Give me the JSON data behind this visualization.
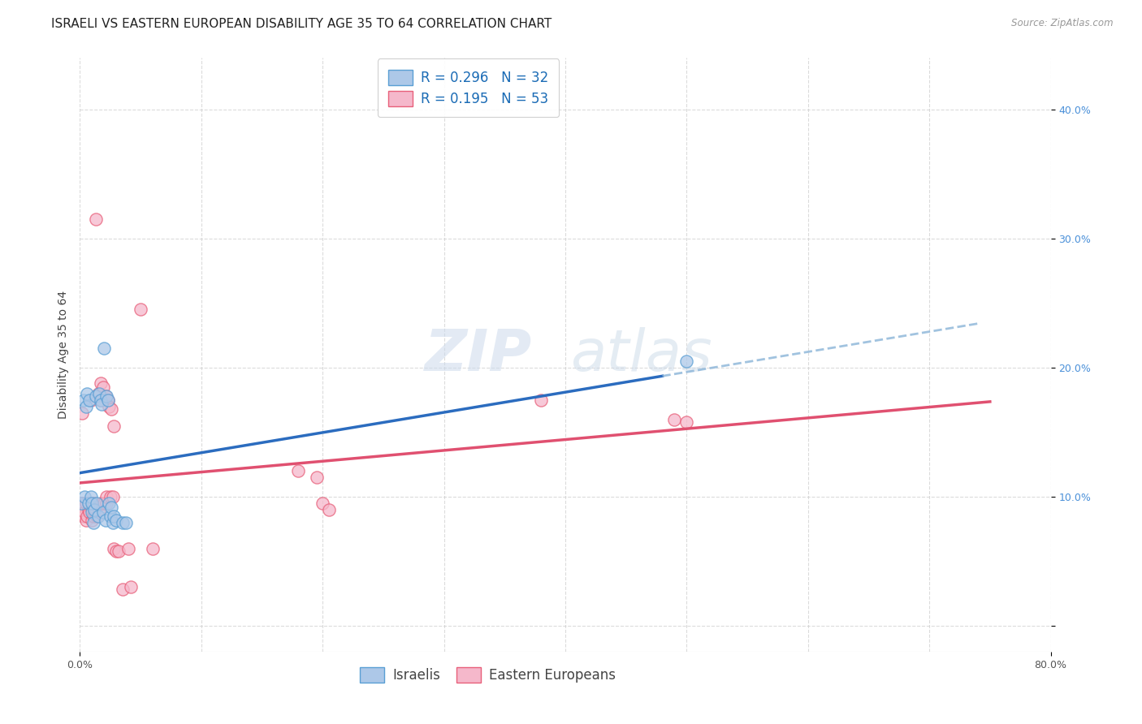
{
  "title": "ISRAELI VS EASTERN EUROPEAN DISABILITY AGE 35 TO 64 CORRELATION CHART",
  "source": "Source: ZipAtlas.com",
  "xlabel": "",
  "ylabel": "Disability Age 35 to 64",
  "xlim": [
    0,
    0.8
  ],
  "ylim": [
    -0.02,
    0.44
  ],
  "xticks": [
    0.0,
    0.8
  ],
  "xticklabels": [
    "0.0%",
    "80.0%"
  ],
  "yticks": [
    0.0,
    0.1,
    0.2,
    0.3,
    0.4
  ],
  "yticklabels": [
    "",
    "10.0%",
    "20.0%",
    "30.0%",
    "40.0%"
  ],
  "grid_yticks": [
    0.0,
    0.1,
    0.2,
    0.3,
    0.4
  ],
  "grid_xticks": [
    0.0,
    0.1,
    0.2,
    0.3,
    0.4,
    0.5,
    0.6,
    0.7,
    0.8
  ],
  "israeli_R": 0.296,
  "israeli_N": 32,
  "eastern_R": 0.195,
  "eastern_N": 53,
  "israeli_color": "#adc8e8",
  "eastern_color": "#f5b8cb",
  "israeli_edge_color": "#5a9fd4",
  "eastern_edge_color": "#e8607a",
  "israeli_line_color": "#2b6cbf",
  "eastern_line_color": "#e05070",
  "israeli_dash_color": "#8ab4d8",
  "israeli_scatter_x": [
    0.001,
    0.003,
    0.004,
    0.005,
    0.006,
    0.007,
    0.008,
    0.009,
    0.01,
    0.01,
    0.011,
    0.012,
    0.013,
    0.014,
    0.015,
    0.016,
    0.017,
    0.018,
    0.019,
    0.02,
    0.021,
    0.022,
    0.023,
    0.024,
    0.025,
    0.026,
    0.027,
    0.028,
    0.03,
    0.035,
    0.038,
    0.5
  ],
  "israeli_scatter_y": [
    0.095,
    0.175,
    0.1,
    0.17,
    0.18,
    0.095,
    0.175,
    0.1,
    0.088,
    0.095,
    0.08,
    0.09,
    0.178,
    0.095,
    0.085,
    0.18,
    0.175,
    0.172,
    0.088,
    0.215,
    0.082,
    0.178,
    0.175,
    0.095,
    0.085,
    0.092,
    0.08,
    0.085,
    0.082,
    0.08,
    0.08,
    0.205
  ],
  "eastern_scatter_x": [
    0.001,
    0.002,
    0.003,
    0.003,
    0.004,
    0.005,
    0.005,
    0.006,
    0.007,
    0.007,
    0.008,
    0.008,
    0.009,
    0.01,
    0.01,
    0.011,
    0.011,
    0.012,
    0.012,
    0.013,
    0.013,
    0.014,
    0.015,
    0.016,
    0.017,
    0.017,
    0.018,
    0.019,
    0.02,
    0.021,
    0.022,
    0.022,
    0.023,
    0.024,
    0.025,
    0.026,
    0.027,
    0.028,
    0.028,
    0.03,
    0.032,
    0.035,
    0.04,
    0.042,
    0.05,
    0.06,
    0.18,
    0.195,
    0.2,
    0.205,
    0.38,
    0.49,
    0.5
  ],
  "eastern_scatter_y": [
    0.095,
    0.165,
    0.085,
    0.095,
    0.088,
    0.082,
    0.095,
    0.085,
    0.09,
    0.095,
    0.088,
    0.095,
    0.175,
    0.082,
    0.09,
    0.085,
    0.095,
    0.088,
    0.095,
    0.09,
    0.315,
    0.085,
    0.18,
    0.09,
    0.175,
    0.188,
    0.095,
    0.185,
    0.095,
    0.178,
    0.095,
    0.1,
    0.175,
    0.17,
    0.1,
    0.168,
    0.1,
    0.06,
    0.155,
    0.058,
    0.058,
    0.028,
    0.06,
    0.03,
    0.245,
    0.06,
    0.12,
    0.115,
    0.095,
    0.09,
    0.175,
    0.16,
    0.158
  ],
  "background_color": "#ffffff",
  "grid_color": "#cccccc",
  "title_fontsize": 11,
  "axis_label_fontsize": 10,
  "tick_fontsize": 9,
  "legend_fontsize": 12,
  "marker_size": 120,
  "watermark_zip": "ZIP",
  "watermark_atlas": "atlas",
  "watermark_color_zip": "#d0dff0",
  "watermark_color_atlas": "#c5d8e8"
}
